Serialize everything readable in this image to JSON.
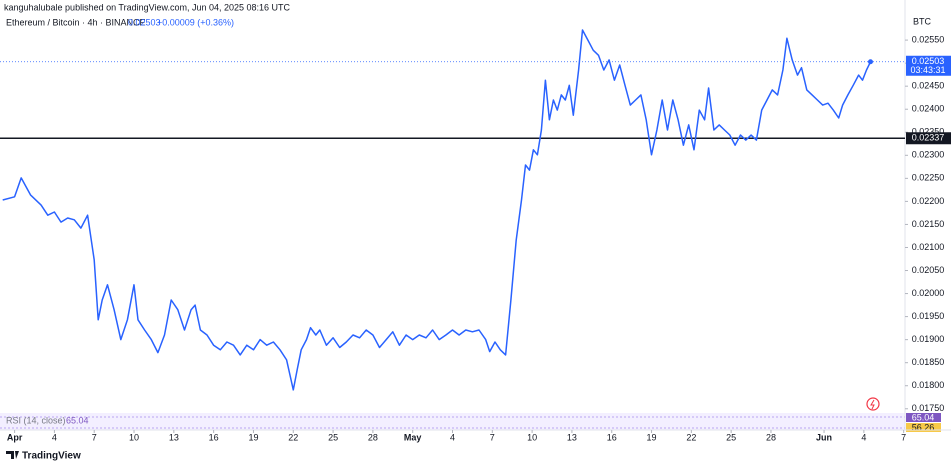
{
  "chart_data": {
    "type": "line",
    "published": "kanguhalubale published on TradingView.com, Jun 04, 2025 08:16 UTC",
    "title": "Ethereum / Bitcoin · 4h · BINANCE",
    "last_price": "0.02503",
    "change": "+0.00009 (+0.36%)",
    "currency": "BTC",
    "countdown": "03:43:31",
    "hline": {
      "value": 0.02337,
      "label": "0.02337"
    },
    "rsi": {
      "label": "RSI (14, close)",
      "value": "65.04",
      "ma": "56.26"
    },
    "brand": "TradingView",
    "grid": false,
    "xlim": [
      -1.1,
      67.1
    ],
    "ylim": [
      0.01743,
      0.02637
    ],
    "xticks": [
      {
        "value": 0,
        "label": "Apr"
      },
      {
        "value": 3,
        "label": "4"
      },
      {
        "value": 6,
        "label": "7"
      },
      {
        "value": 9,
        "label": "10"
      },
      {
        "value": 12,
        "label": "13"
      },
      {
        "value": 15,
        "label": "16"
      },
      {
        "value": 18,
        "label": "19"
      },
      {
        "value": 21,
        "label": "22"
      },
      {
        "value": 24,
        "label": "25"
      },
      {
        "value": 27,
        "label": "28"
      },
      {
        "value": 30,
        "label": "May"
      },
      {
        "value": 33,
        "label": "4"
      },
      {
        "value": 36,
        "label": "7"
      },
      {
        "value": 39,
        "label": "10"
      },
      {
        "value": 42,
        "label": "13"
      },
      {
        "value": 45,
        "label": "16"
      },
      {
        "value": 48,
        "label": "19"
      },
      {
        "value": 51,
        "label": "22"
      },
      {
        "value": 54,
        "label": "25"
      },
      {
        "value": 57,
        "label": "28"
      },
      {
        "value": 61,
        "label": "Jun"
      },
      {
        "value": 64,
        "label": "4"
      },
      {
        "value": 67,
        "label": "7"
      }
    ],
    "yticks": [
      {
        "value": 0.0175,
        "label": "0.01750"
      },
      {
        "value": 0.018,
        "label": "0.01800"
      },
      {
        "value": 0.0185,
        "label": "0.01850"
      },
      {
        "value": 0.019,
        "label": "0.01900"
      },
      {
        "value": 0.0195,
        "label": "0.01950"
      },
      {
        "value": 0.02,
        "label": "0.02000"
      },
      {
        "value": 0.0205,
        "label": "0.02050"
      },
      {
        "value": 0.021,
        "label": "0.02100"
      },
      {
        "value": 0.0215,
        "label": "0.02150"
      },
      {
        "value": 0.022,
        "label": "0.02200"
      },
      {
        "value": 0.0225,
        "label": "0.02250"
      },
      {
        "value": 0.023,
        "label": "0.02300"
      },
      {
        "value": 0.0235,
        "label": "0.02350"
      },
      {
        "value": 0.024,
        "label": "0.02400"
      },
      {
        "value": 0.0245,
        "label": "0.02450"
      },
      {
        "value": 0.025,
        "label": "0.02500"
      },
      {
        "value": 0.0255,
        "label": "0.02550"
      }
    ],
    "x": [
      -0.9,
      0,
      0.5,
      1.2,
      2,
      2.5,
      3,
      3.5,
      4,
      4.5,
      5,
      5.5,
      6,
      6.3,
      6.6,
      7,
      7.5,
      8,
      8.5,
      9,
      9.3,
      9.8,
      10.3,
      10.8,
      11.3,
      11.8,
      12.3,
      12.8,
      13.3,
      13.6,
      14,
      14.5,
      15,
      15.5,
      16,
      16.5,
      17,
      17.5,
      18,
      18.5,
      19,
      19.5,
      20,
      20.5,
      21,
      21.3,
      21.6,
      22,
      22.3,
      22.7,
      23,
      23.5,
      24,
      24.5,
      25,
      25.5,
      26,
      26.5,
      27,
      27.5,
      28,
      28.5,
      29,
      29.5,
      30,
      30.5,
      31,
      31.5,
      32,
      32.5,
      33,
      33.5,
      34,
      34.5,
      35,
      35.5,
      35.8,
      36.2,
      36.6,
      37,
      37.4,
      37.8,
      38.2,
      38.5,
      38.8,
      39.1,
      39.4,
      39.7,
      40,
      40.3,
      40.6,
      40.9,
      41.2,
      41.5,
      41.8,
      42.1,
      42.5,
      42.8,
      43.2,
      43.6,
      44,
      44.4,
      44.8,
      45.2,
      45.6,
      46,
      46.4,
      46.8,
      47.2,
      47.6,
      48,
      48.4,
      48.8,
      49.2,
      49.6,
      50,
      50.4,
      50.8,
      51.2,
      51.6,
      52,
      52.3,
      52.7,
      53.1,
      53.5,
      53.9,
      54.3,
      54.7,
      55.1,
      55.5,
      55.9,
      56.3,
      56.7,
      57.1,
      57.5,
      57.9,
      58.2,
      58.6,
      59,
      59.3,
      59.7,
      60.1,
      60.5,
      60.9,
      61.3,
      61.7,
      62.1,
      62.4,
      62.8,
      63.2,
      63.6,
      63.9,
      64.2,
      64.5
    ],
    "series": [
      {
        "name": "ETHBTC",
        "color": "#2962ff",
        "values": [
          0.02203,
          0.0221,
          0.02251,
          0.02214,
          0.02192,
          0.0217,
          0.02177,
          0.02155,
          0.02164,
          0.0216,
          0.02142,
          0.0217,
          0.02073,
          0.01943,
          0.01986,
          0.02019,
          0.01965,
          0.019,
          0.01943,
          0.02019,
          0.01943,
          0.01921,
          0.019,
          0.01872,
          0.0191,
          0.01986,
          0.01965,
          0.01921,
          0.01965,
          0.01975,
          0.01921,
          0.0191,
          0.01888,
          0.01878,
          0.01895,
          0.01888,
          0.01867,
          0.01888,
          0.01878,
          0.019,
          0.01888,
          0.01895,
          0.01878,
          0.01856,
          0.01791,
          0.01835,
          0.01878,
          0.019,
          0.01926,
          0.0191,
          0.01921,
          0.01888,
          0.01904,
          0.01883,
          0.01895,
          0.0191,
          0.01904,
          0.01921,
          0.0191,
          0.01883,
          0.019,
          0.01917,
          0.01888,
          0.0191,
          0.019,
          0.0191,
          0.01904,
          0.01921,
          0.019,
          0.0191,
          0.01921,
          0.0191,
          0.01921,
          0.01917,
          0.01921,
          0.019,
          0.01874,
          0.01895,
          0.01878,
          0.01867,
          0.01986,
          0.02116,
          0.02203,
          0.02279,
          0.02268,
          0.02312,
          0.02301,
          0.02355,
          0.02463,
          0.02377,
          0.0242,
          0.02398,
          0.02431,
          0.0242,
          0.02452,
          0.02387,
          0.02485,
          0.02572,
          0.0255,
          0.02528,
          0.02517,
          0.02485,
          0.02507,
          0.02463,
          0.02496,
          0.02452,
          0.02409,
          0.0242,
          0.02431,
          0.02377,
          0.02301,
          0.02355,
          0.0242,
          0.02355,
          0.0242,
          0.02377,
          0.02322,
          0.02366,
          0.02312,
          0.02398,
          0.02377,
          0.02446,
          0.02355,
          0.02366,
          0.02355,
          0.02344,
          0.02322,
          0.02344,
          0.02333,
          0.02344,
          0.02333,
          0.02398,
          0.0242,
          0.02442,
          0.02431,
          0.02485,
          0.02554,
          0.02507,
          0.02474,
          0.0249,
          0.02442,
          0.02431,
          0.0242,
          0.02409,
          0.02413,
          0.02398,
          0.02381,
          0.02409,
          0.02431,
          0.02452,
          0.02474,
          0.02463,
          0.02485,
          0.02503
        ]
      }
    ]
  }
}
